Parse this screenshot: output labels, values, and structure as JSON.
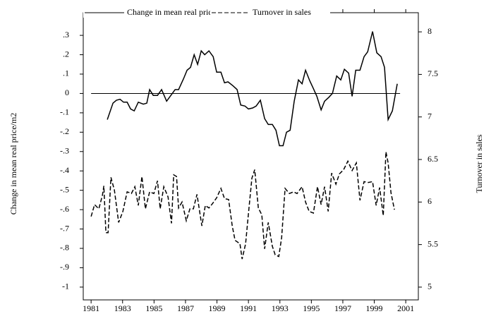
{
  "chart_data": {
    "type": "line",
    "ylabel": "Change in mean real price/m2",
    "y2label": "Turnover in sales",
    "xlim": [
      1980.5,
      2001.8
    ],
    "xticks": [
      1981,
      1983,
      1985,
      1987,
      1989,
      1991,
      1993,
      1995,
      1997,
      1999,
      2001
    ],
    "ylim": [
      -1.066,
      0.417
    ],
    "yticks": [
      {
        "value": -1,
        "label": "-1"
      },
      {
        "value": -0.9,
        "label": "-.9"
      },
      {
        "value": -0.8,
        "label": "-.8"
      },
      {
        "value": -0.7,
        "label": "-.7"
      },
      {
        "value": -0.6,
        "label": "-.6"
      },
      {
        "value": -0.5,
        "label": "-.5"
      },
      {
        "value": -0.4,
        "label": "-.4"
      },
      {
        "value": -0.3,
        "label": "-.3"
      },
      {
        "value": -0.2,
        "label": "-.2"
      },
      {
        "value": -0.1,
        "label": "-.1"
      },
      0,
      {
        "value": 0.1,
        "label": ".1"
      },
      {
        "value": 0.2,
        "label": ".2"
      },
      {
        "value": 0.3,
        "label": ".3"
      }
    ],
    "y2lim": [
      4.85,
      8.225
    ],
    "y2ticks": [
      5,
      5.5,
      6,
      6.5,
      7,
      7.5,
      8
    ],
    "hline": 0,
    "legend": "top",
    "series": [
      {
        "name": "Change in mean real price/m2",
        "color": "#000000",
        "dash": "solid",
        "x": [
          1982.03,
          1982.39,
          1982.61,
          1982.84,
          1983.06,
          1983.29,
          1983.51,
          1983.74,
          1984.0,
          1984.32,
          1984.54,
          1984.72,
          1984.95,
          1985.22,
          1985.48,
          1985.8,
          1986.07,
          1986.34,
          1986.56,
          1986.87,
          1987.1,
          1987.32,
          1987.55,
          1987.77,
          1988.0,
          1988.22,
          1988.49,
          1988.76,
          1988.98,
          1989.25,
          1989.48,
          1989.7,
          1990.01,
          1990.28,
          1990.51,
          1990.78,
          1991.0,
          1991.27,
          1991.49,
          1991.76,
          1992.03,
          1992.26,
          1992.52,
          1992.75,
          1992.97,
          1993.2,
          1993.42,
          1993.65,
          1993.91,
          1994.18,
          1994.41,
          1994.63,
          1994.9,
          1995.13,
          1995.35,
          1995.62,
          1995.84,
          1996.11,
          1996.34,
          1996.61,
          1996.87,
          1997.1,
          1997.37,
          1997.59,
          1997.82,
          1998.09,
          1998.35,
          1998.58,
          1998.89,
          1999.16,
          1999.43,
          1999.65,
          1999.88,
          2000.15,
          2000.46
        ],
        "values": [
          -0.135,
          -0.05,
          -0.035,
          -0.03,
          -0.045,
          -0.045,
          -0.08,
          -0.09,
          -0.045,
          -0.055,
          -0.05,
          0.02,
          -0.01,
          -0.01,
          0.02,
          -0.04,
          -0.01,
          0.02,
          0.02,
          0.075,
          0.12,
          0.135,
          0.2,
          0.15,
          0.22,
          0.2,
          0.22,
          0.19,
          0.11,
          0.11,
          0.055,
          0.06,
          0.04,
          0.02,
          -0.06,
          -0.065,
          -0.08,
          -0.075,
          -0.065,
          -0.035,
          -0.13,
          -0.16,
          -0.16,
          -0.19,
          -0.27,
          -0.27,
          -0.2,
          -0.19,
          -0.04,
          0.07,
          0.05,
          0.12,
          0.065,
          0.025,
          -0.015,
          -0.085,
          -0.04,
          -0.02,
          0,
          0.09,
          0.07,
          0.125,
          0.105,
          -0.015,
          0.12,
          0.12,
          0.19,
          0.215,
          0.32,
          0.21,
          0.19,
          0.135,
          -0.135,
          -0.09,
          0.05
        ]
      },
      {
        "name": "Turnover in sales",
        "color": "#000000",
        "dash": "dashed",
        "axis": "y2",
        "x": [
          1981,
          1981.22,
          1981.49,
          1981.72,
          1981.81,
          1981.94,
          1982.08,
          1982.26,
          1982.48,
          1982.75,
          1983.02,
          1983.29,
          1983.56,
          1983.78,
          1984.0,
          1984.23,
          1984.45,
          1984.72,
          1984.99,
          1985.22,
          1985.39,
          1985.62,
          1985.89,
          1986.11,
          1986.25,
          1986.43,
          1986.56,
          1986.78,
          1987.05,
          1987.28,
          1987.5,
          1987.73,
          1988.04,
          1988.26,
          1988.49,
          1988.71,
          1988.98,
          1989.25,
          1989.48,
          1989.74,
          1989.97,
          1990.15,
          1990.46,
          1990.6,
          1990.82,
          1991.04,
          1991.22,
          1991.4,
          1991.63,
          1991.85,
          1992.03,
          1992.26,
          1992.52,
          1992.7,
          1992.93,
          1993.11,
          1993.33,
          1993.6,
          1993.87,
          1994.09,
          1994.41,
          1994.63,
          1994.86,
          1995.13,
          1995.39,
          1995.62,
          1995.84,
          1996.07,
          1996.29,
          1996.56,
          1996.78,
          1997.05,
          1997.32,
          1997.59,
          1997.86,
          1998.09,
          1998.35,
          1998.62,
          1998.89,
          1999.12,
          1999.34,
          1999.57,
          1999.74,
          1999.88,
          2000.06,
          2000.28
        ],
        "values": [
          5.83,
          5.97,
          5.92,
          6.08,
          6.19,
          5.64,
          5.64,
          6.29,
          6.14,
          5.76,
          5.89,
          6.12,
          6.1,
          6.18,
          5.96,
          6.3,
          5.92,
          6.12,
          6.1,
          6.25,
          5.92,
          6.18,
          6.06,
          5.75,
          6.32,
          6.3,
          5.93,
          6.0,
          5.78,
          5.92,
          5.92,
          6.09,
          5.72,
          5.96,
          5.93,
          5.98,
          6.05,
          6.16,
          6.04,
          6.03,
          5.72,
          5.55,
          5.51,
          5.33,
          5.51,
          5.94,
          6.28,
          6.38,
          5.93,
          5.85,
          5.45,
          5.76,
          5.48,
          5.38,
          5.36,
          5.58,
          6.16,
          6.1,
          6.12,
          6.1,
          6.18,
          6.0,
          5.89,
          5.87,
          6.18,
          5.97,
          6.18,
          5.89,
          6.34,
          6.21,
          6.33,
          6.38,
          6.48,
          6.37,
          6.46,
          6.02,
          6.24,
          6.23,
          6.24,
          5.96,
          6.17,
          5.84,
          6.59,
          6.46,
          6.11,
          5.91
        ]
      }
    ]
  }
}
